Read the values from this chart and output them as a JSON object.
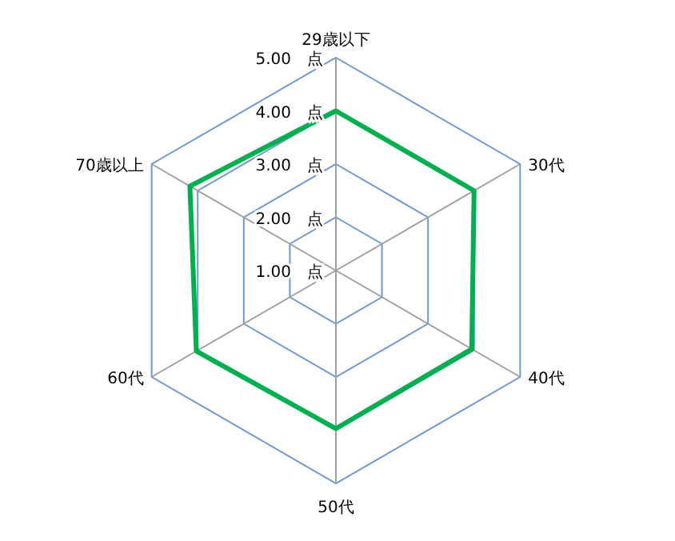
{
  "chart_data": {
    "type": "radar",
    "categories": [
      "29歳以下",
      "30代",
      "40代",
      "50代",
      "60代",
      "70歳以上"
    ],
    "series": [
      {
        "color": "#00b050",
        "values": [
          4.0,
          4.0,
          3.95,
          3.97,
          4.03,
          4.17
        ]
      }
    ],
    "ylim": [
      1,
      5
    ],
    "yticks": [
      {
        "value": 1,
        "label": "1.00　点"
      },
      {
        "value": 2,
        "label": "2.00　点"
      },
      {
        "value": 3,
        "label": "3.00　点"
      },
      {
        "value": 4,
        "label": "4.00　点"
      },
      {
        "value": 5,
        "label": "5.00　点"
      }
    ],
    "grid": true,
    "marker": "none",
    "line_style": "solid"
  }
}
